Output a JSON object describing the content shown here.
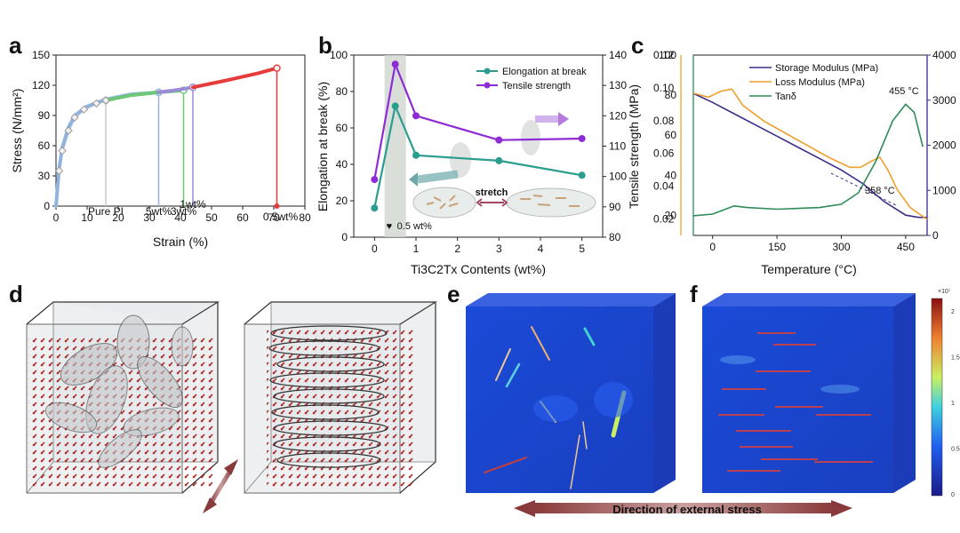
{
  "panel_labels": [
    "a",
    "b",
    "c",
    "d",
    "e",
    "f"
  ],
  "chart_data": [
    {
      "id": "a",
      "type": "line",
      "xlabel": "Strain (%)",
      "ylabel": "Stress (N/mm²)",
      "xlim": [
        0,
        80
      ],
      "ylim": [
        0,
        150
      ],
      "xticks": [
        0,
        10,
        20,
        30,
        40,
        50,
        60,
        70,
        80
      ],
      "yticks": [
        0,
        30,
        60,
        90,
        120,
        150
      ],
      "series": [
        {
          "name": "Pure PI",
          "color": "#c8c8c8",
          "points": [
            [
              0,
              0
            ],
            [
              1,
              35
            ],
            [
              2,
              55
            ],
            [
              4,
              75
            ],
            [
              6,
              88
            ],
            [
              9,
              96
            ],
            [
              13,
              102
            ],
            [
              16,
              105
            ]
          ]
        },
        {
          "name": "5wt%",
          "color": "#8fb4e0",
          "points": [
            [
              0,
              0
            ],
            [
              1,
              37
            ],
            [
              2,
              58
            ],
            [
              4,
              78
            ],
            [
              6,
              90
            ],
            [
              10,
              99
            ],
            [
              16,
              106
            ],
            [
              24,
              111
            ],
            [
              33,
              113
            ]
          ]
        },
        {
          "name": "3wt%",
          "color": "#6dc774",
          "points": [
            [
              16,
              105
            ],
            [
              24,
              110
            ],
            [
              33,
              113
            ],
            [
              41,
              115
            ]
          ]
        },
        {
          "name": "1wt%",
          "color": "#9b8bd6",
          "points": [
            [
              33,
              113
            ],
            [
              38,
              115
            ],
            [
              44,
              118
            ]
          ]
        },
        {
          "name": "0.5wt%",
          "color": "#e63b3b",
          "points": [
            [
              44,
              118
            ],
            [
              55,
              125
            ],
            [
              65,
              132
            ],
            [
              71,
              137
            ]
          ]
        }
      ],
      "labels": [
        {
          "text": "Pure PI",
          "x": 16
        },
        {
          "text": "5wt%",
          "x": 33
        },
        {
          "text": "3wt%",
          "x": 41
        },
        {
          "text": "1wt%",
          "x": 44
        },
        {
          "text": "0.5wt%",
          "x": 71
        }
      ]
    },
    {
      "id": "b",
      "type": "line",
      "xlabel": "Ti3C2Tx Contents (wt%)",
      "ylabel": "Elongation at break (%)",
      "y2label": "Tensile strength (MPa)",
      "x": [
        0,
        0.5,
        1,
        3,
        5
      ],
      "xlim": [
        -0.5,
        5.5
      ],
      "ylim": [
        0,
        100
      ],
      "y2lim": [
        80,
        140
      ],
      "xticks": [
        0,
        1,
        2,
        3,
        4,
        5
      ],
      "yticks": [
        0,
        20,
        40,
        60,
        80,
        100
      ],
      "y2ticks": [
        80,
        90,
        100,
        110,
        120,
        130,
        140
      ],
      "series": [
        {
          "name": "Elongation at break",
          "color": "#2a9d8f",
          "axis": "left",
          "values": [
            16,
            72,
            45,
            42,
            34
          ]
        },
        {
          "name": "Tensile strength",
          "color": "#8e2bd6",
          "axis": "right",
          "values": [
            99,
            137,
            120,
            112,
            112.5
          ]
        }
      ],
      "highlight": "0.5 wt%",
      "stretch_label": "stretch"
    },
    {
      "id": "c",
      "type": "line",
      "xlabel": "Temperature (°C)",
      "xlim": [
        -45,
        500
      ],
      "xticks": [
        0,
        150,
        300,
        450
      ],
      "axes": [
        {
          "name": "tan",
          "color": "#2e8b57",
          "lim": [
            0.01,
            0.12
          ],
          "ticks": [
            "0.02",
            "0.04",
            "0.06",
            "0.08",
            "0.10",
            "0.12"
          ]
        },
        {
          "name": "loss",
          "color": "#f0a030",
          "lim": [
            10,
            100
          ],
          "ticks": [
            "20",
            "40",
            "60",
            "80",
            "100"
          ]
        },
        {
          "name": "storage",
          "color": "#3a2e8a",
          "lim": [
            0,
            4000
          ],
          "ticks": [
            "0",
            "1000",
            "2000",
            "3000",
            "4000"
          ]
        }
      ],
      "series": [
        {
          "name": "Storage Modulus (MPa)",
          "color": "#3a2e8a",
          "axis": "storage",
          "points": [
            [
              -45,
              3150
            ],
            [
              0,
              2950
            ],
            [
              50,
              2700
            ],
            [
              100,
              2450
            ],
            [
              150,
              2200
            ],
            [
              200,
              1950
            ],
            [
              250,
              1700
            ],
            [
              300,
              1450
            ],
            [
              350,
              1150
            ],
            [
              400,
              750
            ],
            [
              450,
              450
            ],
            [
              480,
              400
            ],
            [
              500,
              400
            ]
          ]
        },
        {
          "name": "Loss Modulus (MPa)",
          "color": "#f0a030",
          "axis": "loss",
          "points": [
            [
              -45,
              81
            ],
            [
              -10,
              79
            ],
            [
              20,
              82
            ],
            [
              45,
              83
            ],
            [
              70,
              75
            ],
            [
              120,
              67
            ],
            [
              170,
              61
            ],
            [
              220,
              55
            ],
            [
              270,
              49
            ],
            [
              320,
              44
            ],
            [
              345,
              44
            ],
            [
              370,
              47
            ],
            [
              390,
              49
            ],
            [
              410,
              42
            ],
            [
              430,
              33
            ],
            [
              460,
              24
            ],
            [
              500,
              18
            ]
          ]
        },
        {
          "name": "Tanδ",
          "color": "#2e8b57",
          "axis": "tan",
          "points": [
            [
              -45,
              0.022
            ],
            [
              0,
              0.023
            ],
            [
              30,
              0.026
            ],
            [
              50,
              0.028
            ],
            [
              80,
              0.027
            ],
            [
              150,
              0.026
            ],
            [
              250,
              0.027
            ],
            [
              300,
              0.029
            ],
            [
              340,
              0.036
            ],
            [
              380,
              0.055
            ],
            [
              420,
              0.08
            ],
            [
              450,
              0.09
            ],
            [
              470,
              0.085
            ],
            [
              490,
              0.064
            ]
          ]
        }
      ],
      "annotations": [
        "455 °C",
        "358 °C"
      ]
    }
  ],
  "stress_label": "Direction of external stress",
  "colorbar": {
    "exponent": "×10⁷",
    "ticks": [
      "2",
      "1.5",
      "1",
      "0.5",
      "0"
    ]
  }
}
